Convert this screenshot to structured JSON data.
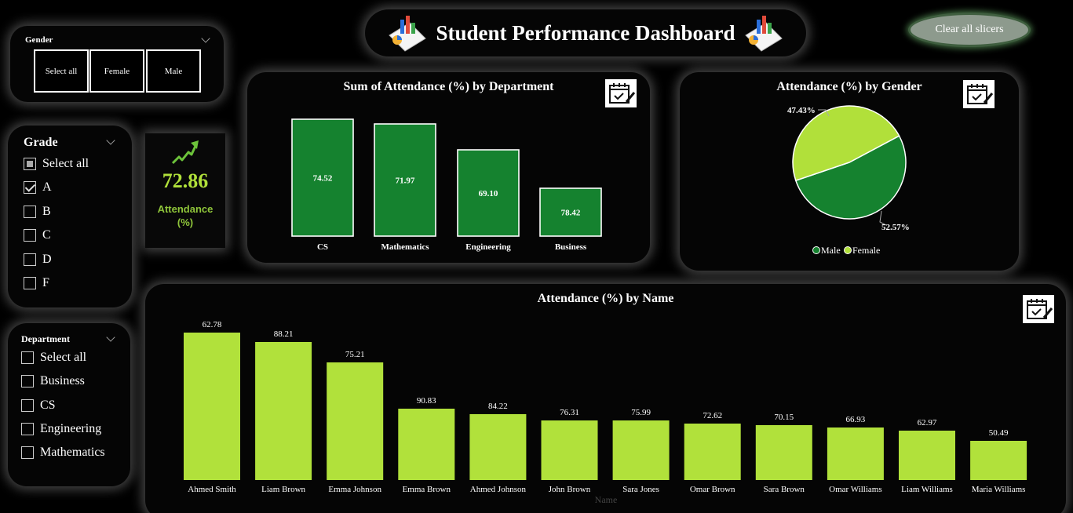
{
  "header": {
    "title": "Student Performance Dashboard"
  },
  "clear_button": "Clear all slicers",
  "gender_slicer": {
    "title": "Gender",
    "options": [
      "Select all",
      "Female",
      "Male"
    ]
  },
  "grade_slicer": {
    "title": "Grade",
    "items": [
      {
        "label": "Select all",
        "state": "partial"
      },
      {
        "label": "A",
        "state": "checked"
      },
      {
        "label": "B",
        "state": "unchecked"
      },
      {
        "label": "C",
        "state": "unchecked"
      },
      {
        "label": "D",
        "state": "unchecked"
      },
      {
        "label": "F",
        "state": "unchecked"
      }
    ]
  },
  "kpi": {
    "value": "72.86",
    "label_line1": "Attendance",
    "label_line2": "(%)",
    "color": "#b0e03a",
    "icon": "trend-up-arrow-icon"
  },
  "department_slicer": {
    "title": "Department",
    "items": [
      {
        "label": "Select all",
        "state": "unchecked"
      },
      {
        "label": "Business",
        "state": "unchecked"
      },
      {
        "label": "CS",
        "state": "unchecked"
      },
      {
        "label": "Engineering",
        "state": "unchecked"
      },
      {
        "label": "Mathematics",
        "state": "unchecked"
      }
    ]
  },
  "chart_data": [
    {
      "type": "bar",
      "title": "Sum of Attendance (%) by Department",
      "categories": [
        "CS",
        "Mathematics",
        "Engineering",
        "Business"
      ],
      "values": [
        74.52,
        71.97,
        69.1,
        78.42
      ],
      "data_labels": [
        "74.52",
        "71.97",
        "69.10",
        "78.42"
      ],
      "bar_color": "#15822f",
      "xlabel": "",
      "ylabel": ""
    },
    {
      "type": "pie",
      "title": "Attendance (%) by Gender",
      "labels": [
        "Male",
        "Female"
      ],
      "values": [
        52.57,
        47.43
      ],
      "data_labels": [
        "52.57%",
        "47.43%"
      ],
      "colors": [
        "#15822f",
        "#b1e03a"
      ],
      "legend": "bottom"
    },
    {
      "type": "bar",
      "title": "Attendance (%) by Name",
      "categories": [
        "Ahmed Smith",
        "Liam Brown",
        "Emma Johnson",
        "Emma Brown",
        "Ahmed Johnson",
        "John Brown",
        "Sara Jones",
        "Omar Brown",
        "Sara Brown",
        "Omar Williams",
        "Liam Williams",
        "Maria Williams"
      ],
      "values": [
        62.78,
        88.21,
        75.21,
        90.83,
        84.22,
        76.31,
        75.99,
        72.62,
        70.15,
        66.93,
        62.97,
        50.49
      ],
      "data_labels": [
        "62.78",
        "88.21",
        "75.21",
        "90.83",
        "84.22",
        "76.31",
        "75.99",
        "72.62",
        "70.15",
        "66.93",
        "62.97",
        "50.49"
      ],
      "xlabel": "Name",
      "bar_color": "#b1e13b"
    }
  ]
}
